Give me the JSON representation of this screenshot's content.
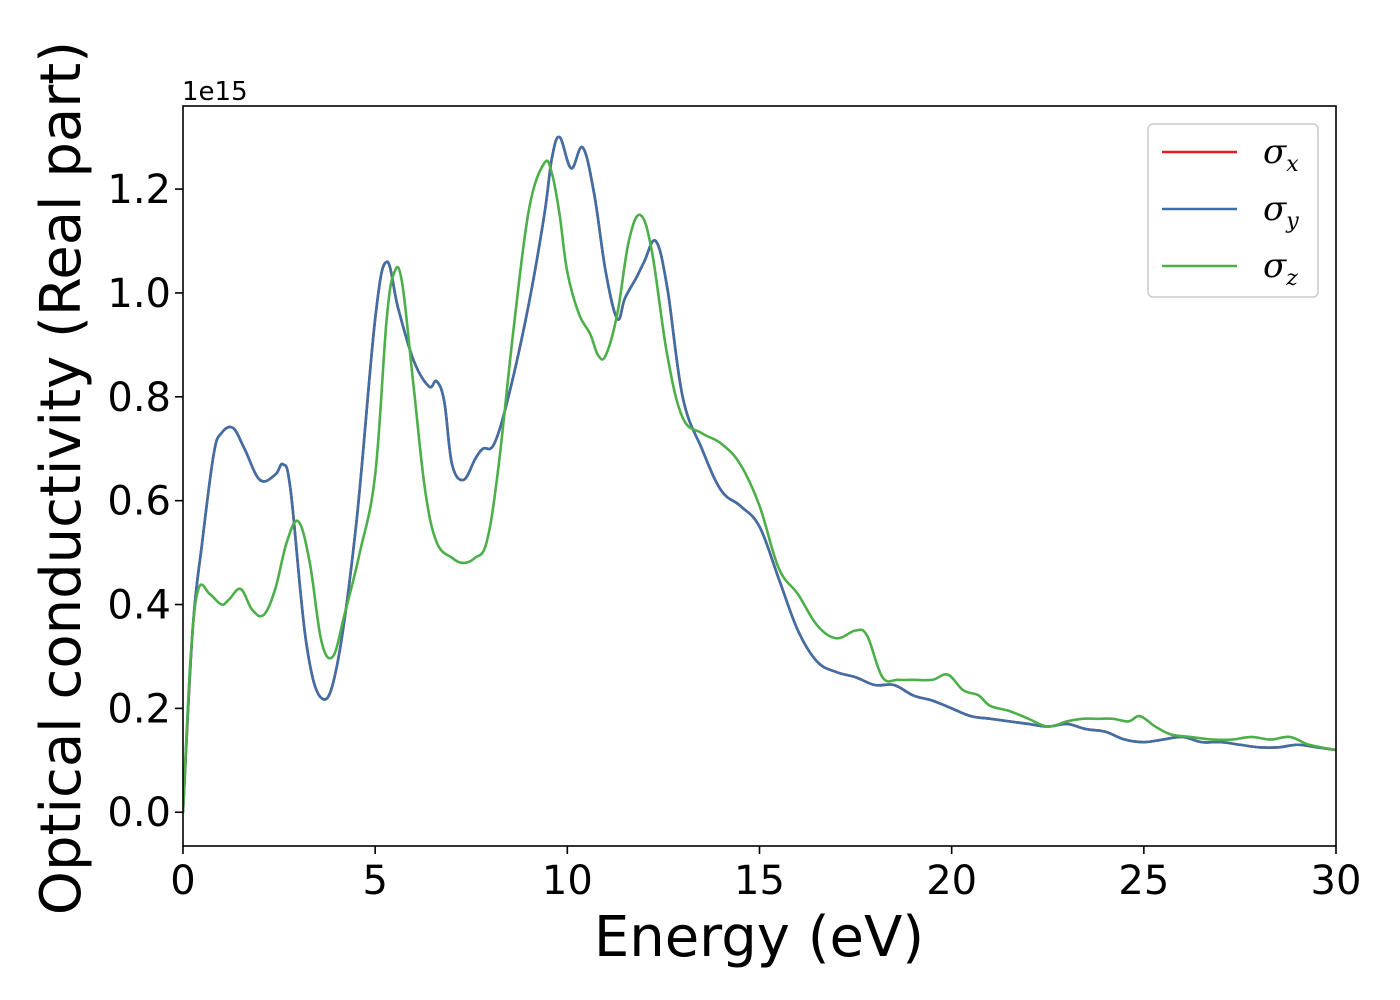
{
  "chart_data": {
    "type": "line",
    "xlabel": "Energy (eV)",
    "ylabel": "Optical conductivity (Real part)",
    "y_offset_label": "1e15",
    "xlim": [
      0,
      30
    ],
    "ylim": [
      -0.065,
      1.36
    ],
    "xticks": [
      0,
      5,
      10,
      15,
      20,
      25,
      30
    ],
    "xtick_labels": [
      "0",
      "5",
      "10",
      "15",
      "20",
      "25",
      "30"
    ],
    "yticks": [
      0.0,
      0.2,
      0.4,
      0.6,
      0.8,
      1.0,
      1.2
    ],
    "ytick_labels": [
      "0.0",
      "0.2",
      "0.4",
      "0.6",
      "0.8",
      "1.0",
      "1.2"
    ],
    "grid": false,
    "legend_position": "top-right",
    "series": [
      {
        "name": "σ",
        "sub": "x",
        "color": "#e41a1c",
        "x": [
          0,
          0.25,
          0.5,
          0.8,
          1.0,
          1.3,
          1.6,
          2.0,
          2.4,
          2.6,
          2.8,
          3.2,
          3.6,
          4.0,
          4.5,
          5.0,
          5.3,
          5.6,
          6.0,
          6.4,
          6.6,
          6.8,
          7.0,
          7.3,
          7.6,
          7.8,
          8.1,
          8.5,
          9.0,
          9.4,
          9.6,
          9.8,
          10.1,
          10.4,
          10.7,
          11.0,
          11.3,
          11.5,
          11.8,
          12.0,
          12.3,
          12.6,
          13.0,
          13.5,
          14.0,
          14.5,
          15.0,
          15.5,
          16.0,
          16.5,
          17.0,
          17.5,
          18.0,
          18.5,
          19.0,
          19.5,
          20.0,
          20.5,
          21.0,
          21.5,
          22.0,
          22.5,
          23.0,
          23.5,
          24.0,
          24.5,
          25.0,
          25.5,
          26.0,
          26.5,
          27.0,
          27.5,
          28.0,
          28.5,
          29.0,
          29.5,
          30.0
        ],
        "y": [
          0.0,
          0.35,
          0.52,
          0.69,
          0.73,
          0.74,
          0.7,
          0.64,
          0.65,
          0.67,
          0.62,
          0.33,
          0.22,
          0.28,
          0.55,
          0.95,
          1.06,
          0.97,
          0.87,
          0.82,
          0.83,
          0.79,
          0.67,
          0.64,
          0.68,
          0.7,
          0.71,
          0.81,
          0.98,
          1.15,
          1.26,
          1.3,
          1.24,
          1.28,
          1.19,
          1.04,
          0.95,
          0.99,
          1.03,
          1.06,
          1.1,
          1.01,
          0.8,
          0.7,
          0.62,
          0.59,
          0.55,
          0.45,
          0.35,
          0.29,
          0.27,
          0.26,
          0.245,
          0.245,
          0.225,
          0.215,
          0.2,
          0.185,
          0.18,
          0.175,
          0.17,
          0.165,
          0.17,
          0.16,
          0.155,
          0.14,
          0.135,
          0.14,
          0.145,
          0.135,
          0.135,
          0.13,
          0.125,
          0.125,
          0.13,
          0.125,
          0.12
        ]
      },
      {
        "name": "σ",
        "sub": "y",
        "color": "#3e6fa5",
        "x": [
          0,
          0.25,
          0.5,
          0.8,
          1.0,
          1.3,
          1.6,
          2.0,
          2.4,
          2.6,
          2.8,
          3.2,
          3.6,
          4.0,
          4.5,
          5.0,
          5.3,
          5.6,
          6.0,
          6.4,
          6.6,
          6.8,
          7.0,
          7.3,
          7.6,
          7.8,
          8.1,
          8.5,
          9.0,
          9.4,
          9.6,
          9.8,
          10.1,
          10.4,
          10.7,
          11.0,
          11.3,
          11.5,
          11.8,
          12.0,
          12.3,
          12.6,
          13.0,
          13.5,
          14.0,
          14.5,
          15.0,
          15.5,
          16.0,
          16.5,
          17.0,
          17.5,
          18.0,
          18.5,
          19.0,
          19.5,
          20.0,
          20.5,
          21.0,
          21.5,
          22.0,
          22.5,
          23.0,
          23.5,
          24.0,
          24.5,
          25.0,
          25.5,
          26.0,
          26.5,
          27.0,
          27.5,
          28.0,
          28.5,
          29.0,
          29.5,
          30.0
        ],
        "y": [
          0.0,
          0.35,
          0.52,
          0.69,
          0.73,
          0.74,
          0.7,
          0.64,
          0.65,
          0.67,
          0.62,
          0.33,
          0.22,
          0.28,
          0.55,
          0.95,
          1.06,
          0.97,
          0.87,
          0.82,
          0.83,
          0.79,
          0.67,
          0.64,
          0.68,
          0.7,
          0.71,
          0.81,
          0.98,
          1.15,
          1.26,
          1.3,
          1.24,
          1.28,
          1.19,
          1.04,
          0.95,
          0.99,
          1.03,
          1.06,
          1.1,
          1.01,
          0.8,
          0.7,
          0.62,
          0.59,
          0.55,
          0.45,
          0.35,
          0.29,
          0.27,
          0.26,
          0.245,
          0.245,
          0.225,
          0.215,
          0.2,
          0.185,
          0.18,
          0.175,
          0.17,
          0.165,
          0.17,
          0.16,
          0.155,
          0.14,
          0.135,
          0.14,
          0.145,
          0.135,
          0.135,
          0.13,
          0.125,
          0.125,
          0.13,
          0.125,
          0.12
        ]
      },
      {
        "name": "σ",
        "sub": "z",
        "color": "#4daf4a",
        "x": [
          0,
          0.2,
          0.4,
          0.7,
          1.0,
          1.2,
          1.5,
          1.8,
          2.1,
          2.4,
          2.7,
          3.0,
          3.3,
          3.6,
          3.9,
          4.2,
          4.6,
          5.0,
          5.3,
          5.5,
          5.7,
          6.0,
          6.3,
          6.6,
          7.0,
          7.3,
          7.6,
          7.9,
          8.2,
          8.6,
          9.0,
          9.4,
          9.6,
          9.8,
          10.0,
          10.3,
          10.6,
          10.8,
          11.0,
          11.3,
          11.6,
          11.9,
          12.2,
          12.6,
          13.0,
          13.5,
          14.0,
          14.5,
          15.0,
          15.5,
          16.0,
          16.5,
          17.0,
          17.5,
          17.8,
          18.2,
          18.6,
          19.0,
          19.5,
          19.9,
          20.3,
          20.7,
          21.0,
          21.5,
          22.0,
          22.5,
          23.0,
          23.4,
          23.8,
          24.2,
          24.6,
          24.9,
          25.3,
          25.7,
          26.2,
          26.8,
          27.3,
          27.8,
          28.3,
          28.8,
          29.3,
          30.0
        ],
        "y": [
          0.0,
          0.3,
          0.43,
          0.42,
          0.4,
          0.41,
          0.43,
          0.39,
          0.38,
          0.43,
          0.52,
          0.56,
          0.48,
          0.33,
          0.3,
          0.38,
          0.5,
          0.65,
          0.95,
          1.04,
          1.02,
          0.82,
          0.62,
          0.52,
          0.49,
          0.48,
          0.49,
          0.52,
          0.66,
          0.93,
          1.16,
          1.25,
          1.23,
          1.15,
          1.04,
          0.96,
          0.92,
          0.88,
          0.88,
          0.96,
          1.1,
          1.15,
          1.08,
          0.88,
          0.76,
          0.73,
          0.71,
          0.67,
          0.59,
          0.47,
          0.42,
          0.36,
          0.335,
          0.35,
          0.34,
          0.26,
          0.255,
          0.255,
          0.255,
          0.265,
          0.235,
          0.225,
          0.205,
          0.195,
          0.18,
          0.165,
          0.175,
          0.18,
          0.18,
          0.18,
          0.175,
          0.185,
          0.165,
          0.15,
          0.145,
          0.14,
          0.14,
          0.145,
          0.14,
          0.145,
          0.13,
          0.12
        ]
      }
    ]
  }
}
